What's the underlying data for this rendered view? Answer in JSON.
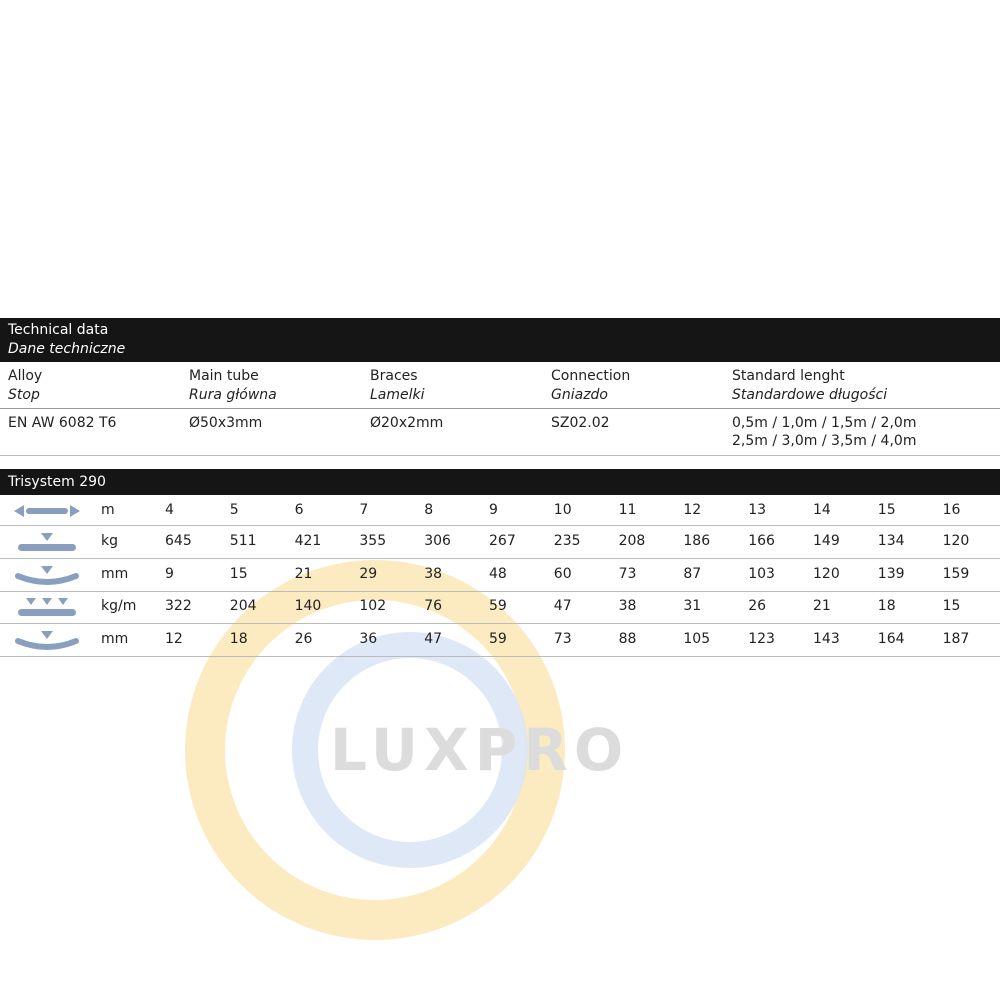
{
  "technical": {
    "title": "Technical data",
    "title_pl": "Dane techniczne",
    "columns": [
      {
        "label": "Alloy",
        "label_pl": "Stop",
        "value": "EN AW 6082  T6",
        "value2": ""
      },
      {
        "label": "Main tube",
        "label_pl": "Rura główna",
        "value": "Ø50x3mm",
        "value2": ""
      },
      {
        "label": "Braces",
        "label_pl": "Lamelki",
        "value": "Ø20x2mm",
        "value2": ""
      },
      {
        "label": "Connection",
        "label_pl": "Gniazdo",
        "value": "SZ02.02",
        "value2": ""
      },
      {
        "label": "Standard lenght",
        "label_pl": "Standardowe długości",
        "value": "0,5m / 1,0m / 1,5m / 2,0m",
        "value2": "2,5m / 3,0m / 3,5m / 4,0m"
      }
    ]
  },
  "trisystem": {
    "title": "Trisystem 290",
    "rows": [
      {
        "icon": "span-length-icon",
        "unit": "m",
        "values": [
          "4",
          "5",
          "6",
          "7",
          "8",
          "9",
          "10",
          "11",
          "12",
          "13",
          "14",
          "15",
          "16"
        ]
      },
      {
        "icon": "point-load-icon",
        "unit": "kg",
        "values": [
          "645",
          "511",
          "421",
          "355",
          "306",
          "267",
          "235",
          "208",
          "186",
          "166",
          "149",
          "134",
          "120"
        ]
      },
      {
        "icon": "point-load-deflection-icon",
        "unit": "mm",
        "values": [
          "9",
          "15",
          "21",
          "29",
          "38",
          "48",
          "60",
          "73",
          "87",
          "103",
          "120",
          "139",
          "159"
        ]
      },
      {
        "icon": "distributed-load-icon",
        "unit": "kg/m",
        "values": [
          "322",
          "204",
          "140",
          "102",
          "76",
          "59",
          "47",
          "38",
          "31",
          "26",
          "21",
          "18",
          "15"
        ]
      },
      {
        "icon": "distributed-load-deflection-icon",
        "unit": "mm",
        "values": [
          "12",
          "18",
          "26",
          "36",
          "47",
          "59",
          "73",
          "88",
          "105",
          "123",
          "143",
          "164",
          "187"
        ]
      }
    ]
  },
  "watermark": {
    "text": "LUXPRO"
  },
  "colors": {
    "header": "#151515",
    "icon": "#8a9fbf",
    "watermark_yellow": "#fbe3a6",
    "watermark_blue": "#d5e2f3",
    "watermark_text": "#d8d8d8"
  }
}
